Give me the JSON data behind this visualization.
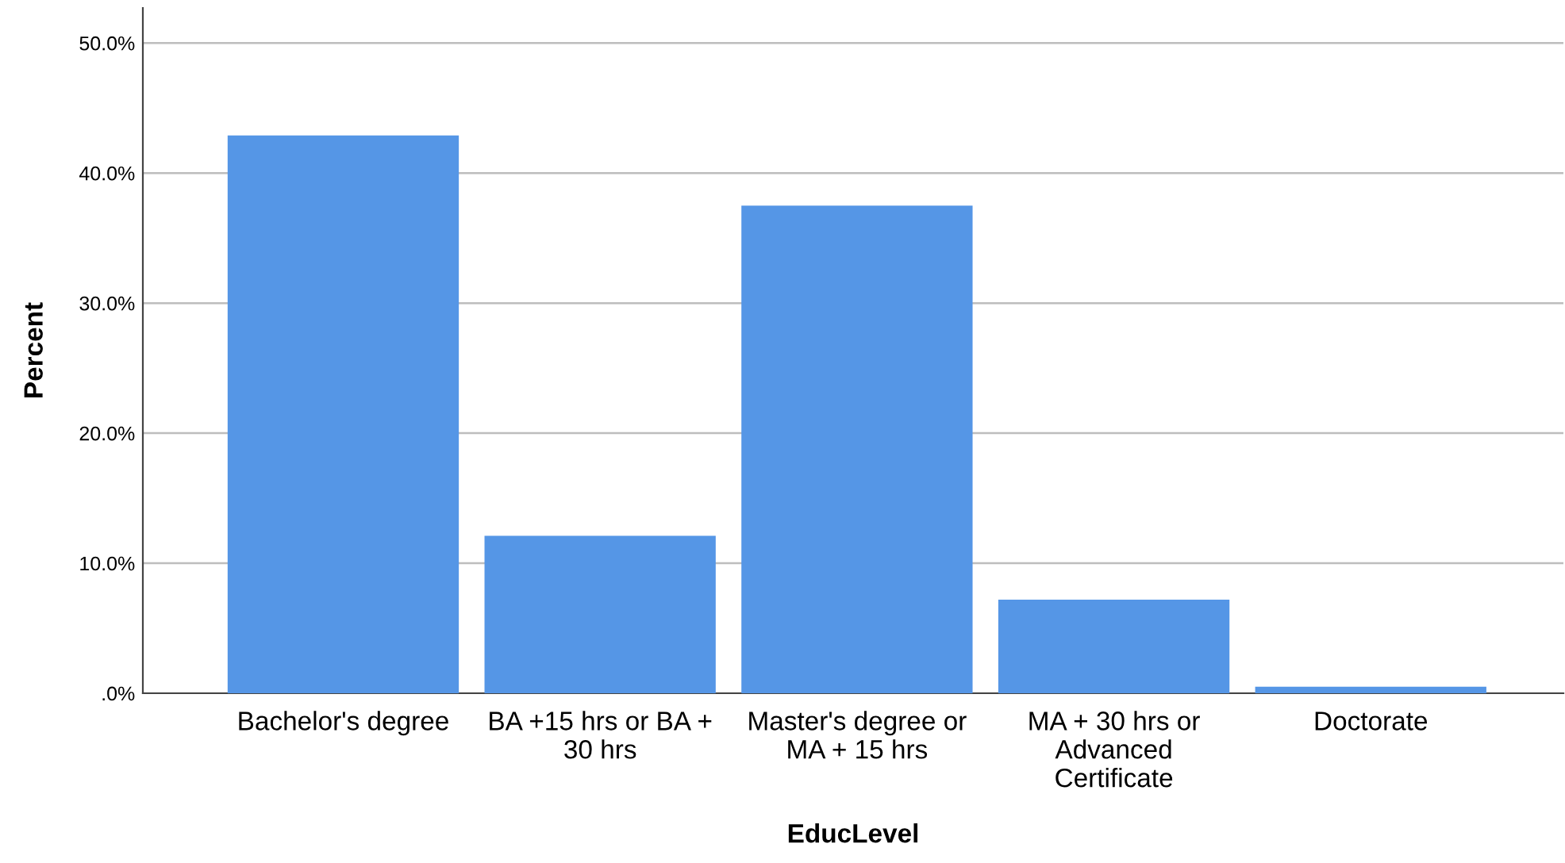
{
  "chart_data": {
    "type": "bar",
    "xlabel": "EducLevel",
    "ylabel": "Percent",
    "categories": [
      "Bachelor's degree",
      "BA +15 hrs or BA + 30 hrs",
      "Master's degree or MA + 15 hrs",
      "MA + 30 hrs or Advanced Certificate",
      "Doctorate"
    ],
    "values": [
      42.9,
      12.1,
      37.5,
      7.2,
      0.5
    ],
    "color": "#5596e6",
    "ylim": [
      0,
      52.7
    ],
    "yticks": [
      {
        "value": 0,
        "label": ".0%"
      },
      {
        "value": 10,
        "label": "10.0%"
      },
      {
        "value": 20,
        "label": "20.0%"
      },
      {
        "value": 30,
        "label": "30.0%"
      },
      {
        "value": 40,
        "label": "40.0%"
      },
      {
        "value": 50,
        "label": "50.0%"
      }
    ],
    "grid": "y"
  }
}
